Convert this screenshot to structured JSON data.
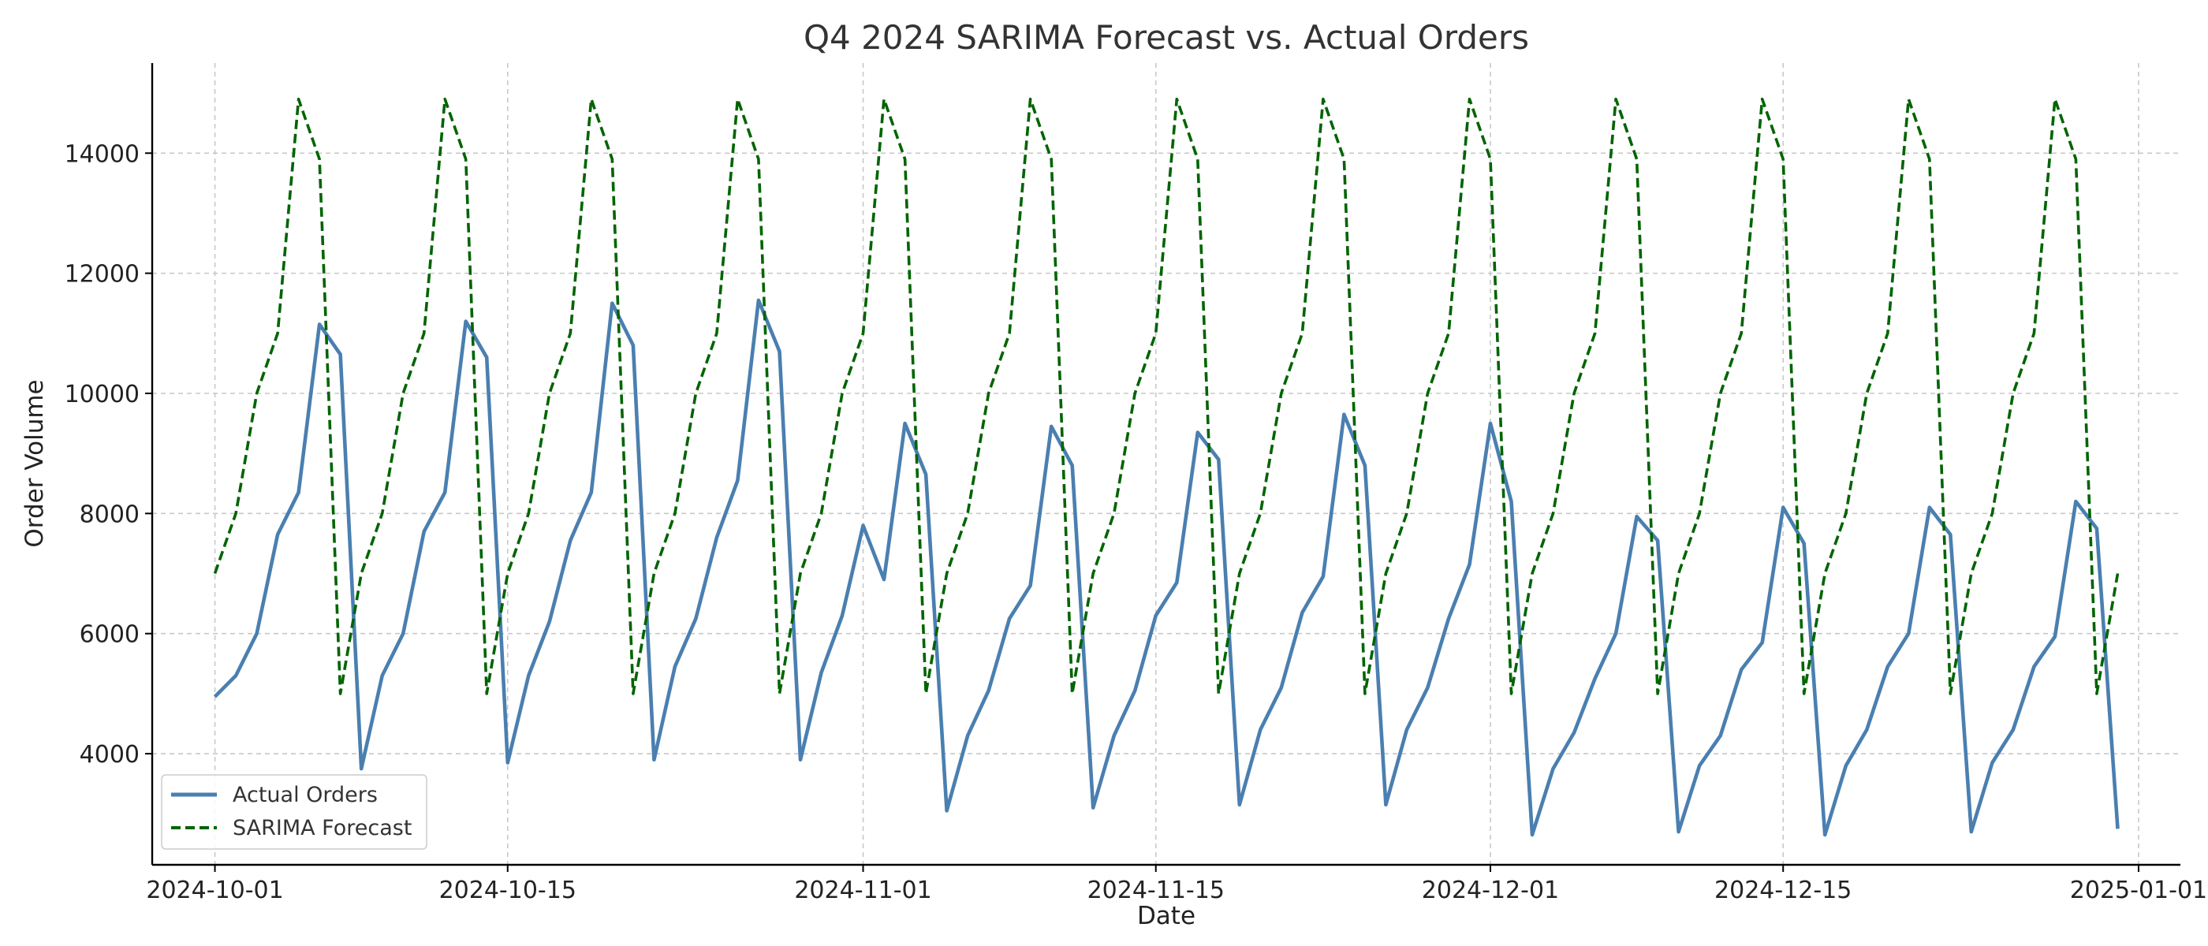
{
  "chart_data": {
    "type": "line",
    "title": "Q4 2024 SARIMA Forecast vs. Actual Orders",
    "xlabel": "Date",
    "ylabel": "Order Volume",
    "x_start": "2024-10-01",
    "x_end": "2024-12-31",
    "xlim": [
      "2023-09-28",
      "2025-01-03"
    ],
    "ylim": [
      2150,
      15500
    ],
    "x_ticks": [
      "2024-10-01",
      "2024-10-15",
      "2024-11-01",
      "2024-11-15",
      "2024-12-01",
      "2024-12-15",
      "2025-01-01"
    ],
    "y_ticks": [
      4000,
      6000,
      8000,
      10000,
      12000,
      14000
    ],
    "grid": true,
    "legend_position": "lower-left",
    "series": [
      {
        "name": "Actual Orders",
        "color": "#4a7fb0",
        "style": "solid",
        "values": [
          4950,
          5300,
          6000,
          7650,
          8350,
          11150,
          10650,
          3750,
          5300,
          6000,
          7700,
          8350,
          11200,
          10600,
          3850,
          5300,
          6200,
          7550,
          8350,
          11500,
          10800,
          3900,
          5450,
          6250,
          7600,
          8550,
          11550,
          10700,
          3900,
          5350,
          6300,
          7800,
          6900,
          9500,
          8650,
          3050,
          4300,
          5050,
          6250,
          6800,
          9450,
          8800,
          3100,
          4300,
          5050,
          6300,
          6850,
          9350,
          8900,
          3150,
          4400,
          5100,
          6350,
          6950,
          9650,
          8800,
          3150,
          4400,
          5100,
          6250,
          7150,
          9500,
          8200,
          2650,
          3750,
          4350,
          5250,
          6000,
          7950,
          7550,
          2700,
          3800,
          4300,
          5400,
          5850,
          8100,
          7500,
          2650,
          3800,
          4400,
          5450,
          6000,
          8100,
          7650,
          2700,
          3850,
          4400,
          5450,
          5950,
          8200,
          7750,
          2750
        ]
      },
      {
        "name": "SARIMA Forecast",
        "color": "#006400",
        "style": "dashed",
        "pattern": [
          7000,
          8000,
          10000,
          11000,
          14900,
          13900,
          5000
        ],
        "values": [
          7000,
          8000,
          10000,
          11000,
          14900,
          13900,
          5000,
          7000,
          8000,
          10000,
          11000,
          14900,
          13900,
          5000,
          7000,
          8000,
          10000,
          11000,
          14900,
          13900,
          5000,
          7000,
          8000,
          10000,
          11000,
          14900,
          13900,
          5000,
          7000,
          8000,
          10000,
          11000,
          14900,
          13900,
          5000,
          7000,
          8000,
          10000,
          11000,
          14900,
          13900,
          5000,
          7000,
          8000,
          10000,
          11000,
          14900,
          13900,
          5000,
          7000,
          8000,
          10000,
          11000,
          14900,
          13900,
          5000,
          7000,
          8000,
          10000,
          11000,
          14900,
          13900,
          5000,
          7000,
          8000,
          10000,
          11000,
          14900,
          13900,
          5000,
          7000,
          8000,
          10000,
          11000,
          14900,
          13900,
          5000,
          7000,
          8000,
          10000,
          11000,
          14900,
          13900,
          5000,
          7000,
          8000,
          10000,
          11000,
          14900,
          13900,
          5000,
          7000
        ]
      }
    ]
  }
}
